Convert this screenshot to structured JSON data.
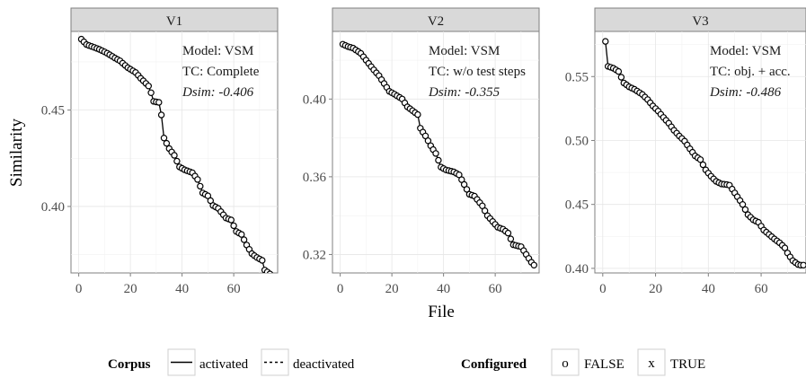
{
  "chart_data": {
    "type": "line",
    "ylabel": "Similarity",
    "xlabel": "File",
    "legend": {
      "position": "bottom",
      "groups": [
        {
          "title": "Corpus",
          "items": [
            "activated",
            "deactivated"
          ]
        },
        {
          "title": "Configured",
          "items": [
            {
              "symbol": "o",
              "label": "FALSE"
            },
            {
              "symbol": "x",
              "label": "TRUE"
            }
          ]
        }
      ]
    },
    "grid": true,
    "panels": [
      {
        "strip": "V1",
        "annotation": {
          "model": "Model: VSM",
          "tc": "TC: Complete",
          "dsim": "Dsim: -0.406"
        },
        "xlim": [
          -3,
          77
        ],
        "ylim": [
          0.3655,
          0.4908
        ],
        "xticks": [
          0,
          20,
          40,
          60
        ],
        "yticks": [
          0.4,
          0.45
        ],
        "ytick_labels": [
          "0.40",
          "0.45"
        ],
        "anchors": [
          [
            1,
            0.4868
          ],
          [
            3,
            0.484
          ],
          [
            5,
            0.483
          ],
          [
            8,
            0.4815
          ],
          [
            11,
            0.4795
          ],
          [
            14,
            0.477
          ],
          [
            16,
            0.4755
          ],
          [
            19,
            0.472
          ],
          [
            22,
            0.4695
          ],
          [
            24,
            0.4665
          ],
          [
            27,
            0.4625
          ],
          [
            28,
            0.459
          ],
          [
            29,
            0.4545
          ],
          [
            31,
            0.454
          ],
          [
            32,
            0.4475
          ],
          [
            33,
            0.4355
          ],
          [
            35,
            0.43
          ],
          [
            37,
            0.4265
          ],
          [
            39,
            0.4205
          ],
          [
            41,
            0.419
          ],
          [
            44,
            0.4175
          ],
          [
            46,
            0.414
          ],
          [
            48,
            0.407
          ],
          [
            50,
            0.4055
          ],
          [
            52,
            0.4005
          ],
          [
            54,
            0.399
          ],
          [
            57,
            0.394
          ],
          [
            59,
            0.393
          ],
          [
            61,
            0.387
          ],
          [
            63,
            0.3855
          ],
          [
            65,
            0.38
          ],
          [
            67,
            0.3755
          ],
          [
            69,
            0.3735
          ],
          [
            71,
            0.372
          ],
          [
            72,
            0.367
          ],
          [
            74,
            0.365
          ],
          [
            75,
            0.3625
          ]
        ]
      },
      {
        "strip": "V2",
        "annotation": {
          "model": "Model: VSM",
          "tc": "TC: w/o test steps",
          "dsim": "Dsim: -0.355"
        },
        "xlim": [
          -3,
          77
        ],
        "ylim": [
          0.3105,
          0.4348
        ],
        "xticks": [
          0,
          20,
          40,
          60
        ],
        "yticks": [
          0.32,
          0.36,
          0.4
        ],
        "ytick_labels": [
          "0.32",
          "0.36",
          "0.40"
        ],
        "anchors": [
          [
            1,
            0.4282
          ],
          [
            3,
            0.427
          ],
          [
            5,
            0.4262
          ],
          [
            8,
            0.4235
          ],
          [
            10,
            0.42
          ],
          [
            13,
            0.415
          ],
          [
            15,
            0.412
          ],
          [
            17,
            0.408
          ],
          [
            19,
            0.404
          ],
          [
            21,
            0.4025
          ],
          [
            24,
            0.4
          ],
          [
            26,
            0.396
          ],
          [
            28,
            0.394
          ],
          [
            30,
            0.392
          ],
          [
            31,
            0.385
          ],
          [
            33,
            0.381
          ],
          [
            35,
            0.376
          ],
          [
            37,
            0.372
          ],
          [
            39,
            0.365
          ],
          [
            41,
            0.3635
          ],
          [
            44,
            0.3625
          ],
          [
            46,
            0.361
          ],
          [
            48,
            0.356
          ],
          [
            50,
            0.351
          ],
          [
            52,
            0.35
          ],
          [
            55,
            0.345
          ],
          [
            57,
            0.34
          ],
          [
            59,
            0.337
          ],
          [
            61,
            0.334
          ],
          [
            63,
            0.333
          ],
          [
            65,
            0.331
          ],
          [
            67,
            0.325
          ],
          [
            70,
            0.324
          ],
          [
            72,
            0.32
          ],
          [
            73,
            0.318
          ],
          [
            74,
            0.316
          ],
          [
            75,
            0.3145
          ]
        ]
      },
      {
        "strip": "V3",
        "annotation": {
          "model": "Model: VSM",
          "tc": "TC: obj. + acc.",
          "dsim": "Dsim: -0.486"
        },
        "xlim": [
          -3,
          77
        ],
        "ylim": [
          0.3964,
          0.5853
        ],
        "xticks": [
          0,
          20,
          40,
          60
        ],
        "yticks": [
          0.4,
          0.45,
          0.5,
          0.55
        ],
        "ytick_labels": [
          "0.40",
          "0.45",
          "0.50",
          "0.55"
        ],
        "anchors": [
          [
            1,
            0.5775
          ],
          [
            2,
            0.558
          ],
          [
            4,
            0.5565
          ],
          [
            6,
            0.554
          ],
          [
            8,
            0.545
          ],
          [
            10,
            0.542
          ],
          [
            12,
            0.54
          ],
          [
            15,
            0.536
          ],
          [
            17,
            0.532
          ],
          [
            19,
            0.527
          ],
          [
            21,
            0.523
          ],
          [
            23,
            0.518
          ],
          [
            25,
            0.5135
          ],
          [
            27,
            0.508
          ],
          [
            29,
            0.5035
          ],
          [
            31,
            0.4995
          ],
          [
            33,
            0.4935
          ],
          [
            35,
            0.488
          ],
          [
            37,
            0.485
          ],
          [
            39,
            0.477
          ],
          [
            41,
            0.472
          ],
          [
            43,
            0.468
          ],
          [
            45,
            0.466
          ],
          [
            47,
            0.4655
          ],
          [
            48,
            0.465
          ],
          [
            49,
            0.462
          ],
          [
            51,
            0.456
          ],
          [
            53,
            0.45
          ],
          [
            55,
            0.442
          ],
          [
            57,
            0.438
          ],
          [
            59,
            0.436
          ],
          [
            61,
            0.43
          ],
          [
            63,
            0.4265
          ],
          [
            65,
            0.423
          ],
          [
            67,
            0.42
          ],
          [
            69,
            0.416
          ],
          [
            70,
            0.412
          ],
          [
            72,
            0.406
          ],
          [
            74,
            0.403
          ],
          [
            75,
            0.4025
          ],
          [
            76,
            0.4025
          ]
        ]
      }
    ]
  }
}
